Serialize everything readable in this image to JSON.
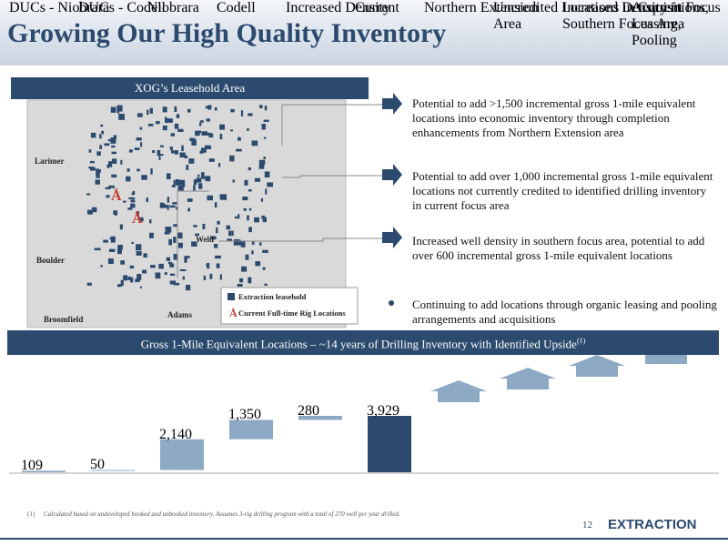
{
  "title": "Growing Our High Quality Inventory",
  "map": {
    "header": "XOG’s Leasehold Area",
    "counties": [
      "Larimer",
      "Weld",
      "Boulder",
      "Adams",
      "Broomfield"
    ],
    "legend": [
      "Extraction leasehold",
      "Current Full-time Rig Locations"
    ]
  },
  "bullets": [
    "Potential to add >1,500 incremental gross 1-mile equivalent locations into economic inventory through completion enhancements from Northern Extension area",
    "Potential to add over 1,000 incremental gross 1-mile equivalent locations not currently credited to identified drilling inventory in current focus area",
    "Increased well density in southern focus area, potential to add over 600 incremental gross 1-mile equivalent locations",
    "Continuing to add locations through organic leasing and pooling arrangements and acquisitions"
  ],
  "chart_data": {
    "type": "waterfall",
    "title": "Gross 1-Mile Equivalent Locations – ~14 years of Drilling Inventory with Identified Upside",
    "title_note": "(1)",
    "categories": [
      "DUCs - Niobrara",
      "DUCs - Codell",
      "Niobrara",
      "Codell",
      "Increased Density",
      "Current",
      "Northern Extension",
      "Uncredited Locations in Current Focus Area",
      "Increased Density in Southern Focus Area",
      "Acquisitions, Leasing, Pooling"
    ],
    "values": [
      109,
      50,
      2140,
      1350,
      280,
      3929,
      null,
      null,
      null,
      null
    ],
    "value_labels": [
      "109",
      "50",
      "2,140",
      "1,350",
      "280",
      "3,929",
      null,
      null,
      null,
      null
    ],
    "color": "#8ea9c4",
    "total_color": "#2b4a6e"
  },
  "footnote": {
    "marker": "(1)",
    "text": "Calculated based on undeveloped booked and unbooked inventory. Assumes 3-rig drilling program with a total of 270 well per year drilled."
  },
  "page_number": "12",
  "logo": "EXTRACTION"
}
